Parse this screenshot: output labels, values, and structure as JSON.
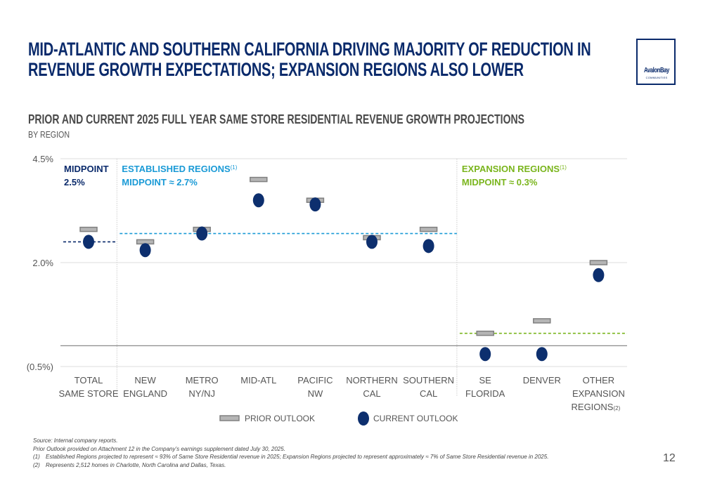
{
  "header": {
    "title_line1": "MID-ATLANTIC AND SOUTHERN CALIFORNIA DRIVING MAJORITY OF REDUCTION IN",
    "title_line2": "REVENUE GROWTH EXPECTATIONS; EXPANSION REGIONS ALSO LOWER",
    "logo_text": "AvalonBay",
    "logo_subtext": "COMMUNITIES"
  },
  "colors": {
    "navy": "#0a2a6b",
    "current_marker": "#0d2f6e",
    "established": "#1a9ad6",
    "expansion": "#7ab51d",
    "prior_fill": "#b5b5b5",
    "prior_stroke": "#808080"
  },
  "chart_data": {
    "type": "scatter",
    "title": "PRIOR AND CURRENT 2025 FULL YEAR SAME STORE RESIDENTIAL REVENUE GROWTH PROJECTIONS",
    "subtitle": "BY REGION",
    "xlabel": "",
    "ylabel": "",
    "ylim": [
      -0.5,
      4.5
    ],
    "yticks": [
      {
        "value": 4.5,
        "label": "4.5%"
      },
      {
        "value": 2.0,
        "label": "2.0%"
      },
      {
        "value": -0.5,
        "label": "(0.5%)"
      }
    ],
    "zero_line": 0,
    "grid": true,
    "categories": [
      [
        "TOTAL",
        "SAME STORE"
      ],
      [
        "NEW",
        "ENGLAND"
      ],
      [
        "METRO",
        "NY/NJ"
      ],
      [
        "MID-ATL"
      ],
      [
        "PACIFIC",
        "NW"
      ],
      [
        "NORTHERN",
        "CAL"
      ],
      [
        "SOUTHERN",
        "CAL"
      ],
      [
        "SE",
        "FLORIDA"
      ],
      [
        "DENVER"
      ],
      [
        "OTHER",
        "EXPANSION",
        "REGIONS"
      ]
    ],
    "category_footnote": {
      "index": 9,
      "mark": "(2)"
    },
    "series": [
      {
        "name": "PRIOR OUTLOOK",
        "marker": "bar",
        "values": [
          2.8,
          2.5,
          2.8,
          4.0,
          3.5,
          2.6,
          2.8,
          0.3,
          0.6,
          2.0
        ]
      },
      {
        "name": "CURRENT OUTLOOK",
        "marker": "circle",
        "values": [
          2.5,
          2.3,
          2.7,
          3.5,
          3.4,
          2.5,
          2.4,
          -0.2,
          -0.2,
          1.7
        ]
      }
    ],
    "groups": [
      {
        "name": "total",
        "label_line1": "MIDPOINT",
        "label_line2": "2.5%",
        "footnote": "",
        "midpoint": 2.5,
        "from": 0,
        "to": 0,
        "color": "#0a2a6b"
      },
      {
        "name": "established",
        "label_line1": "ESTABLISHED REGIONS",
        "label_line2": "MIDPOINT ≈ 2.7%",
        "footnote": "(1)",
        "midpoint": 2.7,
        "from": 1,
        "to": 6,
        "color": "#1a9ad6"
      },
      {
        "name": "expansion",
        "label_line1": "EXPANSION REGIONS",
        "label_line2": "MIDPOINT ≈ 0.3%",
        "footnote": "(1)",
        "midpoint": 0.3,
        "from": 7,
        "to": 9,
        "color": "#7ab51d"
      }
    ],
    "legend": {
      "position": "bottom-center",
      "items": [
        "PRIOR OUTLOOK",
        "CURRENT OUTLOOK"
      ]
    }
  },
  "footnotes": {
    "source": "Source: Internal company reports.",
    "prior_note": "Prior Outlook provided on Attachment 12 in the Company’s earnings supplement dated July 30, 2025.",
    "notes": [
      {
        "num": "(1)",
        "text": "Established Regions projected to represent ≈ 93% of Same Store Residential revenue in 2025; Expansion Regions projected to represent approximately ≈ 7% of Same Store Residential revenue in 2025."
      },
      {
        "num": "(2)",
        "text": "Represents 2,512 homes in Charlotte, North Carolina and Dallas, Texas."
      }
    ]
  },
  "page_number": "12"
}
